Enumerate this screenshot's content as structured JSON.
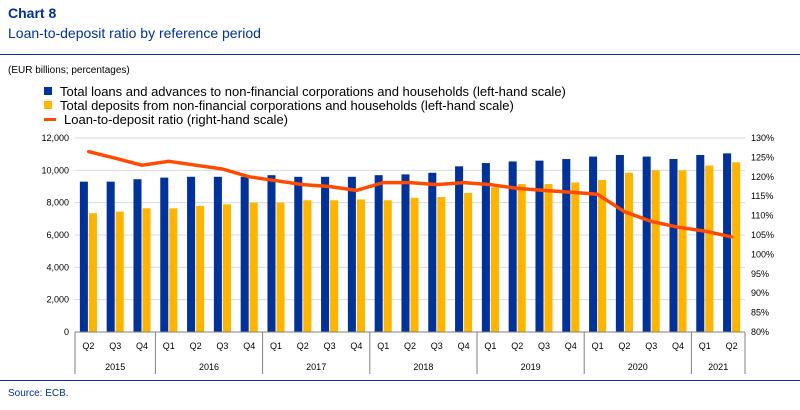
{
  "header": {
    "chart_label": "Chart 8",
    "title": "Loan-to-deposit ratio by reference period",
    "units": "(EUR billions; percentages)"
  },
  "source": "Source: ECB.",
  "colors": {
    "loans": "#003299",
    "deposits": "#FFB400",
    "ratio": "#FF4B00",
    "rule": "#003299"
  },
  "chart_data": {
    "type": "bar",
    "combo": "bar+line",
    "categories": [
      "Q2",
      "Q3",
      "Q4",
      "Q1",
      "Q2",
      "Q3",
      "Q4",
      "Q1",
      "Q2",
      "Q3",
      "Q4",
      "Q1",
      "Q2",
      "Q3",
      "Q4",
      "Q1",
      "Q2",
      "Q3",
      "Q4",
      "Q1",
      "Q2",
      "Q3",
      "Q4",
      "Q1",
      "Q2"
    ],
    "years": [
      {
        "label": "2015",
        "start": 0,
        "count": 3
      },
      {
        "label": "2016",
        "start": 3,
        "count": 4
      },
      {
        "label": "2017",
        "start": 7,
        "count": 4
      },
      {
        "label": "2018",
        "start": 11,
        "count": 4
      },
      {
        "label": "2019",
        "start": 15,
        "count": 4
      },
      {
        "label": "2020",
        "start": 19,
        "count": 4
      },
      {
        "label": "2021",
        "start": 23,
        "count": 2
      }
    ],
    "series": [
      {
        "name": "Total loans and advances to non-financial corporations and households (left-hand scale)",
        "kind": "bar",
        "axis": "left",
        "values": [
          9300,
          9300,
          9450,
          9550,
          9600,
          9600,
          9600,
          9700,
          9600,
          9600,
          9600,
          9700,
          9750,
          9850,
          10250,
          10450,
          10550,
          10600,
          10700,
          10850,
          10950,
          10850,
          10700,
          10950,
          11050
        ]
      },
      {
        "name": "Total deposits from non-financial corporations and households (left-hand scale)",
        "kind": "bar",
        "axis": "left",
        "values": [
          7350,
          7450,
          7650,
          7650,
          7800,
          7900,
          8000,
          8000,
          8150,
          8150,
          8200,
          8150,
          8300,
          8350,
          8600,
          8950,
          9150,
          9150,
          9250,
          9400,
          9850,
          10000,
          10000,
          10300,
          10500
        ]
      },
      {
        "name": "Loan-to-deposit ratio (right-hand scale)",
        "kind": "line",
        "axis": "right",
        "values": [
          126.5,
          124.8,
          123.0,
          124.0,
          123.0,
          122.0,
          120.0,
          119.0,
          118.0,
          117.5,
          116.5,
          118.5,
          118.5,
          118.0,
          118.5,
          118.0,
          117.0,
          116.5,
          116.0,
          115.5,
          111.0,
          108.5,
          107.0,
          106.0,
          104.5
        ]
      }
    ],
    "y_left": {
      "min": 0,
      "max": 12000,
      "ticks": [
        "0",
        "2,000",
        "4,000",
        "6,000",
        "8,000",
        "10,000",
        "12,000"
      ]
    },
    "y_right": {
      "min": 80,
      "max": 130,
      "ticks": [
        "80%",
        "85%",
        "90%",
        "95%",
        "100%",
        "105%",
        "110%",
        "115%",
        "120%",
        "125%",
        "130%"
      ]
    },
    "grid": true,
    "legend_position": "top-left"
  }
}
